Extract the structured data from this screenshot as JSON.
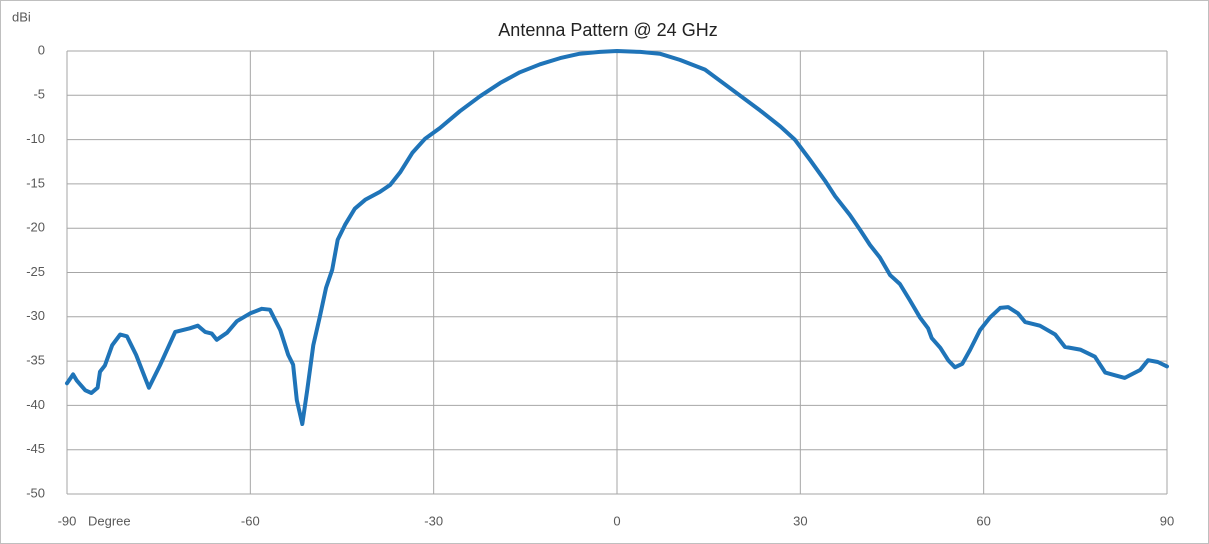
{
  "chart_data": {
    "type": "line",
    "title": "Antenna Pattern @ 24 GHz",
    "y_label": "dBi",
    "x_label": "Degree",
    "x": [
      -90,
      -89,
      -88.4,
      -87,
      -86,
      -85,
      -84.6,
      -83.8,
      -82.6,
      -81.3,
      -80.2,
      -78.7,
      -76.6,
      -74.8,
      -72.3,
      -69.9,
      -68.6,
      -67.4,
      -66.3,
      -65.5,
      -63.8,
      -62.2,
      -60,
      -58.1,
      -56.8,
      -55.1,
      -53.8,
      -53,
      -52.4,
      -51.5,
      -50.7,
      -49.7,
      -48.6,
      -47.6,
      -46.6,
      -45.7,
      -44.5,
      -42.9,
      -41.2,
      -38.8,
      -37.1,
      -35.5,
      -33.5,
      -31.4,
      -29,
      -25.7,
      -22.4,
      -19.1,
      -15.9,
      -12.6,
      -9.3,
      -6.1,
      -2.8,
      0,
      3.8,
      7,
      10.3,
      14.4,
      18.5,
      23.4,
      26.7,
      29.1,
      31.6,
      34,
      35.7,
      38.1,
      39.8,
      41.4,
      43,
      44.7,
      46.3,
      47.9,
      49.6,
      50.9,
      51.5,
      52.9,
      54.2,
      55.3,
      56.5,
      57.8,
      59.4,
      61,
      62.7,
      64,
      65.6,
      66.8,
      69.2,
      71.7,
      73.3,
      75.8,
      78.2,
      79.9,
      81.5,
      83.1,
      85.6,
      86.9,
      88.5,
      90
    ],
    "series": [
      {
        "name": "Antenna Pattern",
        "color": "#1f74b8",
        "values": [
          -37.5,
          -36.5,
          -37.2,
          -38.3,
          -38.6,
          -38,
          -36.2,
          -35.5,
          -33.2,
          -32,
          -32.2,
          -34.3,
          -38,
          -35.5,
          -31.7,
          -31.3,
          -31,
          -31.7,
          -31.9,
          -32.6,
          -31.8,
          -30.5,
          -29.6,
          -29.1,
          -29.2,
          -31.5,
          -34.3,
          -35.4,
          -39.4,
          -42.1,
          -38.3,
          -33.2,
          -29.9,
          -26.7,
          -24.7,
          -21.3,
          -19.6,
          -17.8,
          -16.8,
          -15.9,
          -15.1,
          -13.7,
          -11.5,
          -9.9,
          -8.7,
          -6.8,
          -5.1,
          -3.6,
          -2.4,
          -1.5,
          -0.8,
          -0.3,
          -0.1,
          0,
          -0.1,
          -0.3,
          -1,
          -2.1,
          -4.2,
          -6.7,
          -8.5,
          -10,
          -12.3,
          -14.6,
          -16.4,
          -18.5,
          -20.2,
          -21.9,
          -23.3,
          -25.3,
          -26.3,
          -28.1,
          -30.1,
          -31.3,
          -32.4,
          -33.5,
          -34.9,
          -35.7,
          -35.3,
          -33.7,
          -31.5,
          -30.1,
          -29,
          -28.9,
          -29.6,
          -30.6,
          -31,
          -32,
          -33.4,
          -33.7,
          -34.5,
          -36.3,
          -36.6,
          -36.9,
          -36,
          -34.9,
          -35.1,
          -35.6
        ]
      }
    ],
    "xlim": [
      -90,
      90
    ],
    "xticks": [
      -90,
      -60,
      -30,
      0,
      30,
      60,
      90
    ],
    "ylim": [
      -50,
      0
    ],
    "yticks": [
      0,
      -5,
      -10,
      -15,
      -20,
      -25,
      -30,
      -35,
      -40,
      -45,
      -50
    ],
    "grid": true
  }
}
